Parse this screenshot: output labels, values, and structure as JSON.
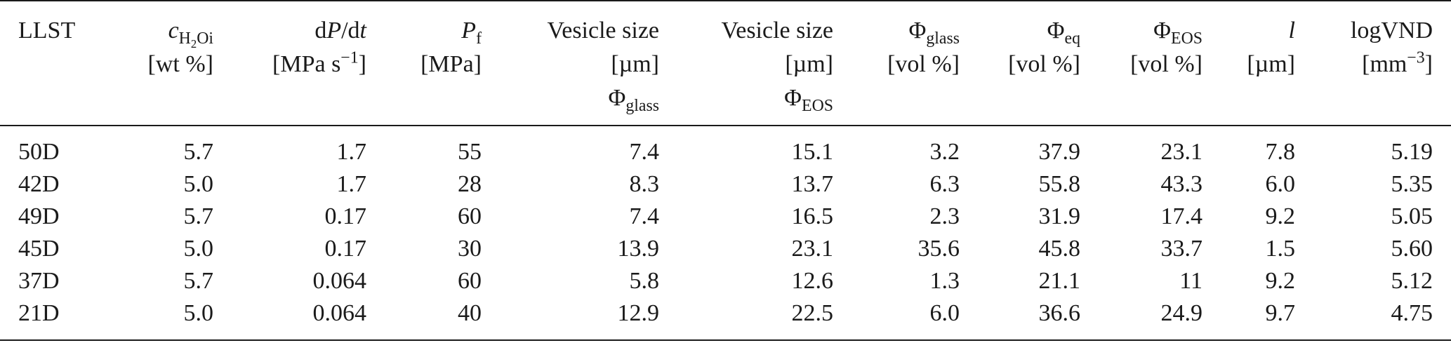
{
  "columns": [
    {
      "key": "llst",
      "lines": [
        "LLST"
      ]
    },
    {
      "key": "ch2o",
      "lines": [
        "[wt %]"
      ],
      "symbol": "c",
      "sub_h": "H",
      "sub_2": "2",
      "sub_oi": "Oi"
    },
    {
      "key": "dpdt",
      "lines": [
        "dP/dt",
        "[MPa s−1]"
      ]
    },
    {
      "key": "pf",
      "lines": [
        "[MPa]"
      ],
      "symbol": "P",
      "sub": "f"
    },
    {
      "key": "vsize_glass",
      "lines": [
        "Vesicle size",
        "[µm]"
      ],
      "phi": "Φ",
      "sub": "glass"
    },
    {
      "key": "vsize_eos",
      "lines": [
        "Vesicle size",
        "[µm]"
      ],
      "phi": "Φ",
      "sub": "EOS"
    },
    {
      "key": "phi_glass",
      "lines": [
        "[vol %]"
      ],
      "phi": "Φ",
      "sub": "glass"
    },
    {
      "key": "phi_eq",
      "lines": [
        "[vol %]"
      ],
      "phi": "Φ",
      "sub": "eq"
    },
    {
      "key": "phi_eos",
      "lines": [
        "[vol %]"
      ],
      "phi": "Φ",
      "sub": "EOS"
    },
    {
      "key": "l",
      "lines": [
        "l",
        "[µm]"
      ]
    },
    {
      "key": "logvnd",
      "lines": [
        "logVND",
        "[mm−3]"
      ]
    }
  ],
  "header": {
    "llst": "LLST",
    "ch2o_c": "c",
    "ch2o_sub_h": "H",
    "ch2o_sub_2": "2",
    "ch2o_sub_oi": "Oi",
    "ch2o_unit": "[wt %]",
    "dpdt_d1": "d",
    "dpdt_p": "P",
    "dpdt_slash": "/d",
    "dpdt_t": "t",
    "dpdt_unit_pre": "[MPa s",
    "dpdt_unit_sup": "−1",
    "dpdt_unit_post": "]",
    "pf_p": "P",
    "pf_sub": "f",
    "pf_unit": "[MPa]",
    "vsize_label": "Vesicle size",
    "vsize_unit": "[µm]",
    "phi": "Φ",
    "sub_glass": "glass",
    "sub_eos": "EOS",
    "sub_eq": "eq",
    "vol_unit": "[vol %]",
    "l_label": "l",
    "l_unit": "[µm]",
    "logvnd_label": "logVND",
    "logvnd_unit_pre": "[mm",
    "logvnd_unit_sup": "−3",
    "logvnd_unit_post": "]"
  },
  "rows": [
    {
      "llst": "50D",
      "ch2o": "5.7",
      "dpdt": "1.7",
      "pf": "55",
      "vsize_glass": "7.4",
      "vsize_eos": "15.1",
      "phi_glass": "3.2",
      "phi_eq": "37.9",
      "phi_eos": "23.1",
      "l": "7.8",
      "logvnd": "5.19"
    },
    {
      "llst": "42D",
      "ch2o": "5.0",
      "dpdt": "1.7",
      "pf": "28",
      "vsize_glass": "8.3",
      "vsize_eos": "13.7",
      "phi_glass": "6.3",
      "phi_eq": "55.8",
      "phi_eos": "43.3",
      "l": "6.0",
      "logvnd": "5.35"
    },
    {
      "llst": "49D",
      "ch2o": "5.7",
      "dpdt": "0.17",
      "pf": "60",
      "vsize_glass": "7.4",
      "vsize_eos": "16.5",
      "phi_glass": "2.3",
      "phi_eq": "31.9",
      "phi_eos": "17.4",
      "l": "9.2",
      "logvnd": "5.05"
    },
    {
      "llst": "45D",
      "ch2o": "5.0",
      "dpdt": "0.17",
      "pf": "30",
      "vsize_glass": "13.9",
      "vsize_eos": "23.1",
      "phi_glass": "35.6",
      "phi_eq": "45.8",
      "phi_eos": "33.7",
      "l": "1.5",
      "logvnd": "5.60"
    },
    {
      "llst": "37D",
      "ch2o": "5.7",
      "dpdt": "0.064",
      "pf": "60",
      "vsize_glass": "5.8",
      "vsize_eos": "12.6",
      "phi_glass": "1.3",
      "phi_eq": "21.1",
      "phi_eos": "11",
      "l": "9.2",
      "logvnd": "5.12"
    },
    {
      "llst": "21D",
      "ch2o": "5.0",
      "dpdt": "0.064",
      "pf": "40",
      "vsize_glass": "12.9",
      "vsize_eos": "22.5",
      "phi_glass": "6.0",
      "phi_eq": "36.6",
      "phi_eos": "24.9",
      "l": "9.7",
      "logvnd": "4.75"
    }
  ],
  "row_keys": [
    "llst",
    "ch2o",
    "dpdt",
    "pf",
    "vsize_glass",
    "vsize_eos",
    "phi_glass",
    "phi_eq",
    "phi_eos",
    "l",
    "logvnd"
  ]
}
